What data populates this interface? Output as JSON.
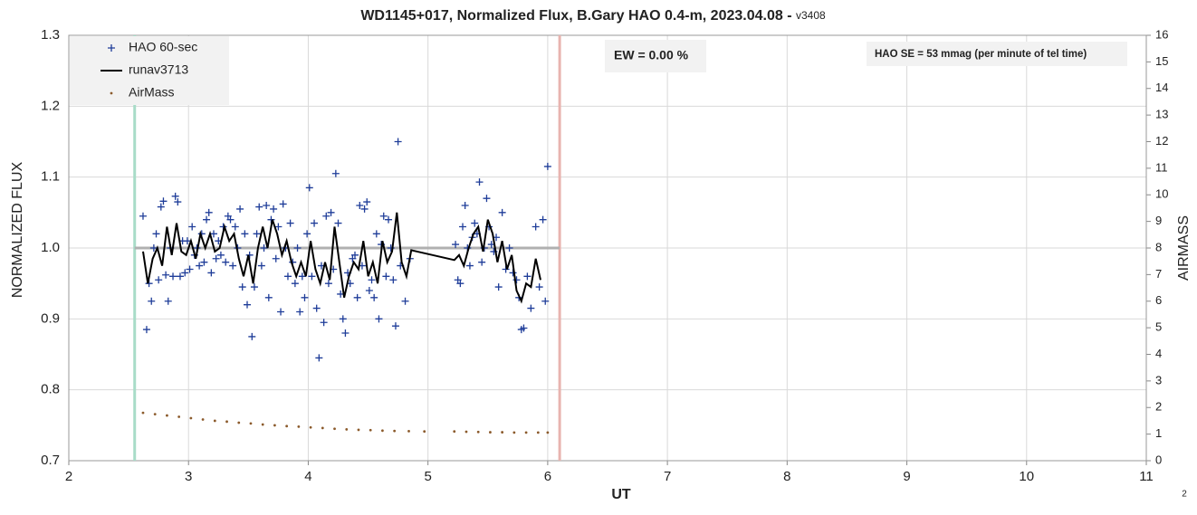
{
  "chart_data": {
    "type": "scatter",
    "title": "WD1145+017, Normalized Flux, B.Gary HAO 0.4-m, 2023.04.08 - ",
    "version": "v3408",
    "xlabel": "UT",
    "ylabel": "NORMALIZED FLUX",
    "y2label": "AIRMASS",
    "xlim": [
      2,
      11
    ],
    "xticks": [
      2,
      3,
      4,
      5,
      6,
      7,
      8,
      9,
      10,
      11
    ],
    "ylim": [
      0.7,
      1.3
    ],
    "yticks": [
      0.7,
      0.8,
      0.9,
      {
        "value": 1.0,
        "label": "1.0"
      },
      1.1,
      1.2,
      1.3
    ],
    "y2lim": [
      0,
      16
    ],
    "y2ticks": [
      0,
      1,
      2,
      3,
      4,
      5,
      6,
      7,
      8,
      9,
      10,
      11,
      12,
      13,
      14,
      15,
      16
    ],
    "grid": true,
    "legend": "upper left",
    "annotations": [
      "EW = 0.00 %",
      "HAO SE =  53 mmag (per minute of tel time)"
    ],
    "page_number": "2",
    "vlines": [
      {
        "x": 2.55,
        "color": "#a8dcc8"
      },
      {
        "x": 6.1,
        "color": "#e8b4b0"
      }
    ],
    "hline": {
      "y": 1.0,
      "x": [
        2.55,
        6.1
      ],
      "color": "#b0b0b0"
    },
    "series": [
      {
        "name": "HAO 60-sec",
        "color": "#1f3d99",
        "marker": "+",
        "x": [
          2.62,
          2.65,
          2.67,
          2.69,
          2.71,
          2.73,
          2.75,
          2.77,
          2.79,
          2.81,
          2.83,
          2.85,
          2.87,
          2.89,
          2.91,
          2.93,
          2.95,
          2.97,
          2.99,
          3.01,
          3.03,
          3.05,
          3.07,
          3.09,
          3.11,
          3.13,
          3.15,
          3.17,
          3.19,
          3.21,
          3.23,
          3.25,
          3.27,
          3.29,
          3.31,
          3.33,
          3.35,
          3.37,
          3.39,
          3.41,
          3.43,
          3.45,
          3.47,
          3.49,
          3.51,
          3.53,
          3.55,
          3.57,
          3.59,
          3.61,
          3.63,
          3.65,
          3.67,
          3.69,
          3.71,
          3.73,
          3.75,
          3.77,
          3.79,
          3.81,
          3.83,
          3.85,
          3.87,
          3.89,
          3.91,
          3.93,
          3.95,
          3.97,
          3.99,
          4.01,
          4.03,
          4.05,
          4.07,
          4.09,
          4.11,
          4.13,
          4.15,
          4.17,
          4.19,
          4.21,
          4.23,
          4.25,
          4.27,
          4.29,
          4.31,
          4.33,
          4.35,
          4.37,
          4.39,
          4.41,
          4.43,
          4.45,
          4.47,
          4.49,
          4.51,
          4.53,
          4.55,
          4.57,
          4.59,
          4.61,
          4.63,
          4.65,
          4.67,
          4.69,
          4.71,
          4.73,
          4.75,
          4.77,
          4.81,
          4.85,
          5.23,
          5.25,
          5.27,
          5.29,
          5.31,
          5.33,
          5.35,
          5.37,
          5.39,
          5.41,
          5.43,
          5.45,
          5.47,
          5.49,
          5.51,
          5.53,
          5.55,
          5.57,
          5.59,
          5.62,
          5.65,
          5.68,
          5.71,
          5.74,
          5.76,
          5.78,
          5.8,
          5.83,
          5.86,
          5.9,
          5.93,
          5.96,
          5.98,
          6.0
        ],
        "values": [
          1.045,
          0.885,
          0.95,
          0.925,
          1.0,
          1.02,
          0.955,
          1.058,
          1.066,
          0.962,
          0.925,
          1.0,
          0.96,
          1.073,
          1.065,
          0.96,
          1.01,
          0.965,
          1.01,
          0.97,
          1.03,
          0.99,
          1.0,
          0.975,
          1.02,
          0.98,
          1.04,
          1.05,
          0.965,
          1.02,
          0.985,
          1.01,
          0.99,
          1.03,
          0.98,
          1.045,
          1.04,
          0.975,
          1.03,
          1.0,
          1.055,
          0.945,
          1.02,
          0.92,
          0.99,
          0.875,
          0.945,
          1.02,
          1.058,
          0.975,
          1.0,
          1.06,
          0.93,
          1.04,
          1.055,
          0.985,
          1.03,
          0.91,
          1.062,
          1.0,
          0.96,
          1.035,
          0.98,
          0.95,
          1.0,
          0.91,
          0.96,
          0.93,
          1.02,
          1.085,
          0.96,
          1.035,
          0.915,
          0.845,
          0.975,
          0.895,
          1.045,
          0.95,
          1.05,
          0.97,
          1.105,
          1.035,
          0.935,
          0.9,
          0.88,
          0.965,
          0.95,
          0.985,
          0.99,
          0.93,
          1.06,
          0.975,
          1.055,
          1.065,
          0.94,
          0.955,
          0.93,
          1.02,
          0.9,
          1.005,
          1.045,
          0.96,
          1.04,
          1.0,
          0.955,
          0.89,
          1.15,
          0.975,
          0.925,
          0.985,
          1.005,
          0.955,
          0.95,
          1.03,
          1.06,
          1.0,
          0.975,
          1.015,
          1.035,
          1.02,
          1.093,
          0.98,
          1.0,
          1.07,
          1.03,
          1.005,
          0.995,
          1.015,
          0.945,
          1.05,
          0.97,
          1.0,
          0.965,
          0.955,
          0.93,
          0.885,
          0.887,
          0.96,
          0.915,
          1.03,
          0.945,
          1.04,
          0.925,
          1.115
        ]
      },
      {
        "name": "runav3713",
        "color": "#000000",
        "marker": "line",
        "x": [
          2.62,
          2.66,
          2.7,
          2.74,
          2.78,
          2.82,
          2.86,
          2.9,
          2.94,
          2.98,
          3.02,
          3.06,
          3.1,
          3.14,
          3.18,
          3.22,
          3.26,
          3.3,
          3.34,
          3.38,
          3.42,
          3.46,
          3.5,
          3.54,
          3.58,
          3.62,
          3.66,
          3.7,
          3.74,
          3.78,
          3.82,
          3.86,
          3.9,
          3.94,
          3.98,
          4.02,
          4.06,
          4.1,
          4.14,
          4.18,
          4.22,
          4.26,
          4.3,
          4.34,
          4.38,
          4.42,
          4.46,
          4.5,
          4.54,
          4.58,
          4.62,
          4.66,
          4.7,
          4.74,
          4.78,
          4.82,
          4.86,
          5.22,
          5.26,
          5.3,
          5.34,
          5.38,
          5.42,
          5.46,
          5.5,
          5.54,
          5.58,
          5.62,
          5.66,
          5.7,
          5.74,
          5.78,
          5.82,
          5.86,
          5.9,
          5.94
        ],
        "values": [
          0.995,
          0.95,
          0.985,
          1.0,
          0.975,
          1.03,
          0.99,
          1.035,
          0.995,
          0.99,
          1.01,
          0.985,
          1.02,
          1.0,
          1.02,
          0.995,
          1.0,
          1.03,
          1.01,
          1.02,
          0.985,
          0.96,
          0.99,
          0.95,
          1.0,
          1.03,
          1.0,
          1.04,
          1.02,
          0.99,
          1.01,
          0.98,
          0.96,
          0.98,
          0.96,
          1.01,
          0.97,
          0.95,
          0.98,
          0.955,
          1.03,
          0.98,
          0.93,
          0.96,
          0.98,
          0.97,
          1.01,
          0.96,
          0.98,
          0.95,
          1.01,
          0.98,
          0.995,
          1.05,
          0.98,
          0.96,
          0.997,
          0.983,
          0.99,
          0.975,
          1.0,
          1.02,
          1.03,
          0.995,
          1.04,
          1.02,
          0.98,
          1.01,
          0.97,
          0.99,
          0.94,
          0.925,
          0.95,
          0.945,
          0.985,
          0.955
        ]
      },
      {
        "name": "AirMass",
        "color": "#8b5a2b",
        "marker": "dot",
        "axis": "y2",
        "x": [
          2.62,
          2.72,
          2.82,
          2.92,
          3.02,
          3.12,
          3.22,
          3.32,
          3.42,
          3.52,
          3.62,
          3.72,
          3.82,
          3.92,
          4.02,
          4.12,
          4.22,
          4.32,
          4.42,
          4.52,
          4.62,
          4.72,
          4.84,
          4.97,
          5.22,
          5.32,
          5.42,
          5.52,
          5.62,
          5.72,
          5.82,
          5.92,
          6.0
        ],
        "values": [
          1.8,
          1.75,
          1.7,
          1.65,
          1.6,
          1.55,
          1.5,
          1.47,
          1.43,
          1.4,
          1.36,
          1.33,
          1.3,
          1.28,
          1.25,
          1.23,
          1.2,
          1.18,
          1.16,
          1.15,
          1.13,
          1.12,
          1.11,
          1.1,
          1.1,
          1.09,
          1.08,
          1.07,
          1.07,
          1.06,
          1.06,
          1.06,
          1.06
        ]
      }
    ]
  }
}
